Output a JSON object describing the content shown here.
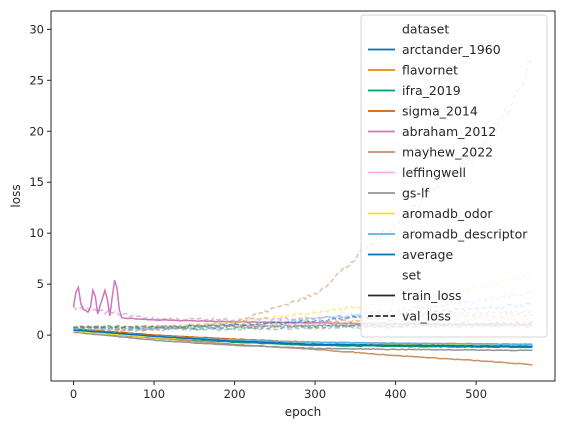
{
  "chart_data": {
    "type": "line",
    "xlabel": "epoch",
    "ylabel": "loss",
    "xlim": [
      -28,
      598
    ],
    "ylim": [
      -4.5,
      31.8
    ],
    "xticks": [
      0,
      100,
      200,
      300,
      400,
      500
    ],
    "yticks": [
      0,
      5,
      10,
      15,
      20,
      25,
      30
    ],
    "grid": false,
    "legend": {
      "placement": "top-right",
      "hue_title": "dataset",
      "style_title": "set",
      "style_entries": [
        {
          "label": "train_loss",
          "dash": "solid"
        },
        {
          "label": "val_loss",
          "dash": "dashed"
        }
      ]
    },
    "series": [
      {
        "name": "arctander_1960",
        "color": "#0173b2",
        "train": [
          [
            0,
            0.6
          ],
          [
            100,
            0.0
          ],
          [
            200,
            -0.5
          ],
          [
            300,
            -0.8
          ],
          [
            400,
            -0.9
          ],
          [
            570,
            -1.0
          ]
        ],
        "val": [
          [
            0,
            0.8
          ],
          [
            100,
            0.7
          ],
          [
            200,
            0.8
          ],
          [
            300,
            0.9
          ],
          [
            400,
            1.0
          ],
          [
            570,
            1.1
          ]
        ]
      },
      {
        "name": "flavornet",
        "color": "#de8f05",
        "train": [
          [
            0,
            0.5
          ],
          [
            100,
            -0.1
          ],
          [
            200,
            -0.6
          ],
          [
            300,
            -0.9
          ],
          [
            400,
            -1.0
          ],
          [
            570,
            -1.1
          ]
        ],
        "val": [
          [
            0,
            0.7
          ],
          [
            100,
            0.8
          ],
          [
            200,
            1.0
          ],
          [
            300,
            1.3
          ],
          [
            400,
            1.6
          ],
          [
            570,
            2.0
          ]
        ]
      },
      {
        "name": "ifra_2019",
        "color": "#029e73",
        "train": [
          [
            0,
            0.5
          ],
          [
            100,
            -0.2
          ],
          [
            200,
            -0.7
          ],
          [
            300,
            -1.0
          ],
          [
            400,
            -1.1
          ],
          [
            570,
            -1.2
          ]
        ],
        "val": [
          [
            0,
            0.7
          ],
          [
            100,
            0.6
          ],
          [
            200,
            0.7
          ],
          [
            300,
            0.8
          ],
          [
            400,
            0.9
          ],
          [
            570,
            1.0
          ]
        ]
      },
      {
        "name": "sigma_2014",
        "color": "#d55e00",
        "train": [
          [
            0,
            0.6
          ],
          [
            100,
            0.0
          ],
          [
            200,
            -0.4
          ],
          [
            300,
            -0.7
          ],
          [
            400,
            -0.8
          ],
          [
            570,
            -0.9
          ]
        ],
        "val": [
          [
            0,
            0.8
          ],
          [
            100,
            0.8
          ],
          [
            200,
            0.9
          ],
          [
            300,
            1.0
          ],
          [
            400,
            1.1
          ],
          [
            570,
            1.2
          ]
        ]
      },
      {
        "name": "abraham_2012",
        "color": "#cc78bc",
        "train": [
          [
            0,
            2.8
          ],
          [
            5,
            5.2
          ],
          [
            10,
            2.6
          ],
          [
            20,
            2.2
          ],
          [
            25,
            4.9
          ],
          [
            30,
            2.1
          ],
          [
            40,
            4.6
          ],
          [
            45,
            1.9
          ],
          [
            52,
            6.0
          ],
          [
            58,
            1.7
          ],
          [
            100,
            1.5
          ],
          [
            200,
            1.3
          ],
          [
            300,
            1.2
          ],
          [
            400,
            1.1
          ],
          [
            570,
            1.0
          ]
        ],
        "val": [
          [
            0,
            2.7
          ],
          [
            100,
            1.6
          ],
          [
            200,
            1.5
          ],
          [
            300,
            1.7
          ],
          [
            400,
            1.9
          ],
          [
            570,
            2.3
          ]
        ]
      },
      {
        "name": "mayhew_2022",
        "color": "#ca9161",
        "train": [
          [
            0,
            0.4
          ],
          [
            100,
            -0.3
          ],
          [
            200,
            -0.9
          ],
          [
            300,
            -1.4
          ],
          [
            400,
            -2.0
          ],
          [
            500,
            -2.5
          ],
          [
            570,
            -2.9
          ]
        ],
        "val": [
          [
            0,
            0.4
          ],
          [
            100,
            0.6
          ],
          [
            200,
            1.3
          ],
          [
            300,
            4.0
          ],
          [
            350,
            7.5
          ],
          [
            400,
            11.0
          ],
          [
            450,
            14.5
          ],
          [
            500,
            18.0
          ],
          [
            540,
            22.0
          ],
          [
            570,
            27.0
          ]
        ]
      },
      {
        "name": "leffingwell",
        "color": "#fbafe4",
        "train": [
          [
            0,
            0.5
          ],
          [
            100,
            -0.1
          ],
          [
            200,
            -0.5
          ],
          [
            300,
            -0.7
          ],
          [
            400,
            -0.8
          ],
          [
            570,
            -0.9
          ]
        ],
        "val": [
          [
            0,
            0.6
          ],
          [
            100,
            0.7
          ],
          [
            200,
            0.9
          ],
          [
            300,
            1.1
          ],
          [
            400,
            1.3
          ],
          [
            570,
            1.6
          ]
        ]
      },
      {
        "name": "gs-lf",
        "color": "#949494",
        "train": [
          [
            0,
            0.3
          ],
          [
            100,
            -0.5
          ],
          [
            200,
            -1.0
          ],
          [
            300,
            -1.3
          ],
          [
            400,
            -1.4
          ],
          [
            570,
            -1.5
          ]
        ],
        "val": [
          [
            0,
            0.5
          ],
          [
            100,
            0.5
          ],
          [
            200,
            0.6
          ],
          [
            300,
            0.7
          ],
          [
            400,
            0.8
          ],
          [
            570,
            0.9
          ]
        ]
      },
      {
        "name": "aromadb_odor",
        "color": "#ece133",
        "train": [
          [
            0,
            0.4
          ],
          [
            100,
            -0.2
          ],
          [
            200,
            -0.6
          ],
          [
            300,
            -0.8
          ],
          [
            400,
            -0.9
          ],
          [
            570,
            -1.0
          ]
        ],
        "val": [
          [
            0,
            0.6
          ],
          [
            100,
            0.8
          ],
          [
            200,
            1.3
          ],
          [
            300,
            2.2
          ],
          [
            400,
            3.3
          ],
          [
            500,
            4.6
          ],
          [
            570,
            6.0
          ]
        ]
      },
      {
        "name": "aromadb_descriptor",
        "color": "#56b4e9",
        "train": [
          [
            0,
            0.5
          ],
          [
            100,
            -0.1
          ],
          [
            200,
            -0.5
          ],
          [
            300,
            -0.7
          ],
          [
            400,
            -0.8
          ],
          [
            570,
            -0.9
          ]
        ],
        "val": [
          [
            0,
            0.6
          ],
          [
            100,
            0.7
          ],
          [
            200,
            1.0
          ],
          [
            300,
            1.6
          ],
          [
            400,
            2.4
          ],
          [
            500,
            3.3
          ],
          [
            570,
            4.2
          ]
        ]
      },
      {
        "name": "average",
        "color": "#0173b2",
        "train": [
          [
            0,
            0.5
          ],
          [
            100,
            -0.1
          ],
          [
            200,
            -0.6
          ],
          [
            300,
            -0.9
          ],
          [
            400,
            -1.0
          ],
          [
            570,
            -1.1
          ]
        ],
        "val": [
          [
            0,
            0.8
          ],
          [
            100,
            0.8
          ],
          [
            200,
            1.0
          ],
          [
            300,
            1.4
          ],
          [
            400,
            2.0
          ],
          [
            570,
            3.0
          ]
        ]
      }
    ]
  }
}
